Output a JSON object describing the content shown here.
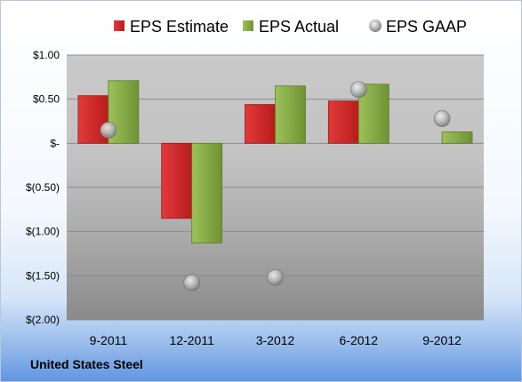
{
  "company": "United States Steel",
  "colors": {
    "estimate": "#d42a2a",
    "actual": "#8cb245",
    "gaap": "#9a9a9a"
  },
  "chart_data": {
    "type": "bar",
    "title": "",
    "xlabel": "",
    "ylabel": "",
    "categories": [
      "9-2011",
      "12-2011",
      "3-2012",
      "6-2012",
      "9-2012"
    ],
    "ylim": [
      -2.0,
      1.0
    ],
    "yticks": [
      1.0,
      0.5,
      0.0,
      -0.5,
      -1.0,
      -1.5,
      -2.0
    ],
    "ytick_labels": [
      "$1.00",
      "$0.50",
      "$-",
      "$(0.50)",
      "$(1.00)",
      "$(1.50)",
      "$(2.00)"
    ],
    "grid": true,
    "legend": "top",
    "series": [
      {
        "name": "EPS Estimate",
        "type": "bar",
        "values": [
          0.54,
          -0.85,
          0.44,
          0.48,
          null
        ]
      },
      {
        "name": "EPS Actual",
        "type": "bar",
        "values": [
          0.71,
          -1.13,
          0.65,
          0.67,
          0.13
        ]
      },
      {
        "name": "EPS GAAP",
        "type": "scatter",
        "values": [
          0.15,
          -1.58,
          -1.52,
          0.61,
          0.28
        ]
      }
    ]
  }
}
